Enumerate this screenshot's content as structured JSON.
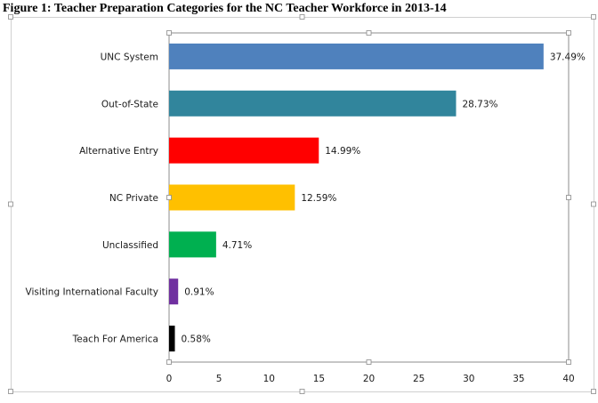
{
  "figure_caption": "Figure 1:  Teacher Preparation Categories for the NC Teacher Workforce in 2013-14",
  "chart_data": {
    "type": "bar",
    "orientation": "horizontal",
    "title": "",
    "xlabel": "",
    "ylabel": "",
    "categories": [
      "UNC System",
      "Out-of-State",
      "Alternative Entry",
      "NC Private",
      "Unclassified",
      "Visiting International Faculty",
      "Teach For America"
    ],
    "values": [
      37.49,
      28.73,
      14.99,
      12.59,
      4.71,
      0.91,
      0.58
    ],
    "value_labels": [
      "37.49%",
      "28.73%",
      "14.99%",
      "12.59%",
      "4.71%",
      "0.91%",
      "0.58%"
    ],
    "colors": [
      "#4f81bd",
      "#31859c",
      "#ff0000",
      "#ffc000",
      "#00b050",
      "#7030a0",
      "#000000"
    ],
    "xlim": [
      0,
      40
    ],
    "xticks": [
      0,
      5,
      10,
      15,
      20,
      25,
      30,
      35,
      40
    ],
    "grid": false,
    "legend": "none"
  }
}
